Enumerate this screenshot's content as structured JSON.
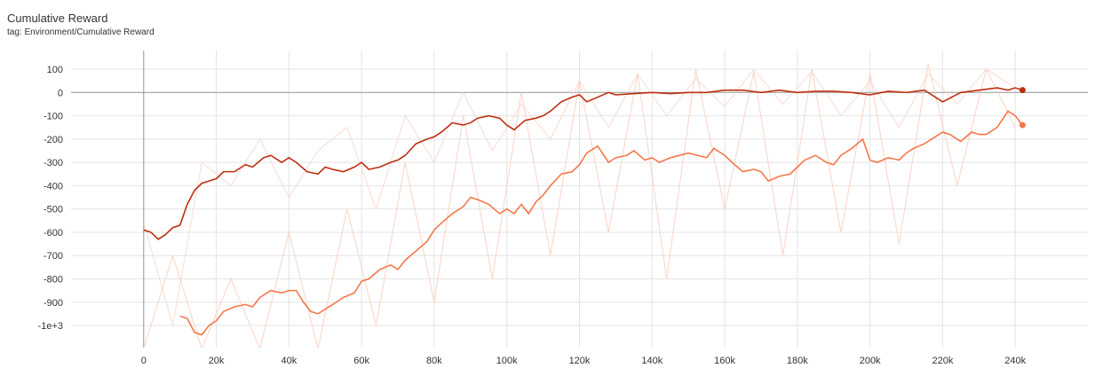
{
  "chart_data": {
    "type": "line",
    "title": "Cumulative Reward",
    "subtitle": "tag: Environment/Cumulative Reward",
    "xlim": [
      -20000,
      260000
    ],
    "ylim": [
      -1095,
      180
    ],
    "xticks": [
      0,
      {
        "value": 20000,
        "label": "20k"
      },
      {
        "value": 40000,
        "label": "40k"
      },
      {
        "value": 60000,
        "label": "60k"
      },
      {
        "value": 80000,
        "label": "80k"
      },
      {
        "value": 100000,
        "label": "100k"
      },
      {
        "value": 120000,
        "label": "120k"
      },
      {
        "value": 140000,
        "label": "140k"
      },
      {
        "value": 160000,
        "label": "160k"
      },
      {
        "value": 180000,
        "label": "180k"
      },
      {
        "value": 200000,
        "label": "200k"
      },
      {
        "value": 220000,
        "label": "220k"
      },
      {
        "value": 240000,
        "label": "240k"
      }
    ],
    "yticks": [
      100,
      0,
      -100,
      -200,
      -300,
      -400,
      -500,
      -600,
      -700,
      -800,
      -900,
      {
        "value": -1000,
        "label": "-1e+3"
      }
    ],
    "grid": true,
    "series": [
      {
        "color": "#f9c9b6",
        "raw": true,
        "x": [
          0,
          8000,
          16000,
          24000,
          32000,
          40000,
          48000,
          56000,
          64000,
          72000,
          80000,
          88000,
          96000,
          104000,
          112000,
          120000,
          128000,
          136000,
          144000,
          152000,
          160000,
          168000,
          176000,
          184000,
          192000,
          200000,
          208000,
          216000,
          224000,
          232000,
          240000
        ],
        "values": [
          -1100,
          -700,
          -1100,
          -800,
          -1100,
          -600,
          -1100,
          -500,
          -1000,
          -300,
          -900,
          -100,
          -800,
          0,
          -700,
          50,
          -600,
          80,
          -800,
          100,
          -500,
          90,
          -700,
          100,
          -600,
          80,
          -650,
          120,
          -400,
          100,
          -150
        ]
      },
      {
        "color": "#f6d3c8",
        "raw": true,
        "x": [
          0,
          8000,
          16000,
          24000,
          32000,
          40000,
          48000,
          56000,
          64000,
          72000,
          80000,
          88000,
          96000,
          104000,
          112000,
          120000,
          128000,
          136000,
          144000,
          152000,
          160000,
          168000,
          176000,
          184000,
          192000,
          200000,
          208000,
          216000,
          224000,
          232000,
          240000
        ],
        "values": [
          -560,
          -1000,
          -300,
          -400,
          -200,
          -450,
          -250,
          -150,
          -500,
          -100,
          -300,
          0,
          -250,
          -50,
          -200,
          50,
          -150,
          80,
          -100,
          60,
          -60,
          100,
          -50,
          90,
          -100,
          50,
          -150,
          80,
          -50,
          100,
          20
        ]
      },
      {
        "color": "#f4774a",
        "x": [
          10000,
          12000,
          14000,
          16000,
          18000,
          20000,
          22000,
          25000,
          28000,
          30000,
          32000,
          35000,
          38000,
          40000,
          42000,
          44000,
          46000,
          48000,
          50000,
          52000,
          55000,
          58000,
          60000,
          62000,
          65000,
          68000,
          70000,
          72000,
          75000,
          78000,
          80000,
          82000,
          85000,
          88000,
          90000,
          92000,
          95000,
          98000,
          100000,
          102000,
          104000,
          106000,
          108000,
          110000,
          112000,
          115000,
          118000,
          120000,
          122000,
          125000,
          128000,
          130000,
          133000,
          135000,
          138000,
          140000,
          142000,
          145000,
          150000,
          155000,
          157000,
          160000,
          162000,
          165000,
          168000,
          170000,
          172000,
          175000,
          178000,
          180000,
          182000,
          185000,
          188000,
          190000,
          192000,
          195000,
          198000,
          200000,
          202000,
          205000,
          208000,
          210000,
          212000,
          215000,
          218000,
          220000,
          222000,
          225000,
          228000,
          230000,
          232000,
          235000,
          238000,
          240000,
          242000
        ],
        "values": [
          -960,
          -970,
          -1030,
          -1040,
          -1000,
          -980,
          -940,
          -920,
          -910,
          -920,
          -880,
          -850,
          -860,
          -850,
          -850,
          -900,
          -940,
          -950,
          -930,
          -910,
          -880,
          -860,
          -810,
          -800,
          -760,
          -740,
          -760,
          -720,
          -680,
          -640,
          -590,
          -560,
          -520,
          -490,
          -450,
          -460,
          -480,
          -520,
          -500,
          -520,
          -480,
          -520,
          -470,
          -440,
          -400,
          -350,
          -340,
          -310,
          -260,
          -230,
          -300,
          -280,
          -270,
          -250,
          -290,
          -280,
          -300,
          -280,
          -260,
          -280,
          -240,
          -270,
          -300,
          -340,
          -330,
          -340,
          -380,
          -360,
          -350,
          -320,
          -290,
          -270,
          -300,
          -310,
          -270,
          -240,
          -200,
          -290,
          -300,
          -280,
          -290,
          -260,
          -240,
          -220,
          -190,
          -170,
          -180,
          -210,
          -170,
          -180,
          -180,
          -150,
          -80,
          -100,
          -140
        ]
      },
      {
        "color": "#bf2f10",
        "x": [
          0,
          2000,
          4000,
          6000,
          8000,
          10000,
          12000,
          14000,
          16000,
          18000,
          20000,
          22000,
          25000,
          28000,
          30000,
          33000,
          35000,
          38000,
          40000,
          42000,
          45000,
          48000,
          50000,
          52000,
          55000,
          58000,
          60000,
          62000,
          65000,
          68000,
          70000,
          72000,
          75000,
          78000,
          80000,
          82000,
          85000,
          88000,
          90000,
          92000,
          95000,
          98000,
          100000,
          102000,
          105000,
          108000,
          110000,
          112000,
          115000,
          118000,
          120000,
          122000,
          125000,
          128000,
          130000,
          135000,
          140000,
          145000,
          150000,
          155000,
          160000,
          165000,
          170000,
          175000,
          180000,
          185000,
          190000,
          195000,
          200000,
          205000,
          210000,
          215000,
          220000,
          225000,
          230000,
          235000,
          238000,
          240000,
          242000
        ],
        "values": [
          -590,
          -600,
          -630,
          -610,
          -580,
          -570,
          -480,
          -420,
          -390,
          -380,
          -370,
          -340,
          -340,
          -310,
          -320,
          -280,
          -270,
          -300,
          -280,
          -300,
          -340,
          -350,
          -320,
          -330,
          -340,
          -320,
          -300,
          -330,
          -320,
          -300,
          -290,
          -270,
          -220,
          -200,
          -190,
          -170,
          -130,
          -140,
          -130,
          -110,
          -100,
          -110,
          -140,
          -160,
          -120,
          -110,
          -100,
          -80,
          -40,
          -20,
          -10,
          -40,
          -20,
          0,
          -10,
          -5,
          0,
          -5,
          0,
          0,
          10,
          10,
          0,
          10,
          0,
          5,
          5,
          0,
          -10,
          5,
          0,
          10,
          -40,
          0,
          10,
          20,
          10,
          20,
          10
        ]
      }
    ]
  }
}
